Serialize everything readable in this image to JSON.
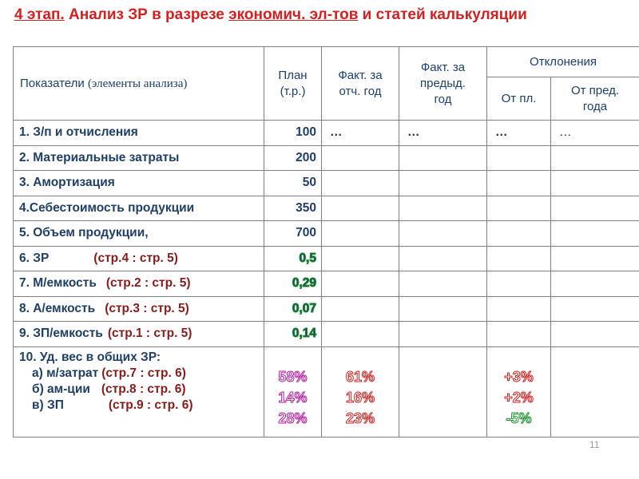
{
  "title": {
    "part1": "4 этап.",
    "part2": " Анализ ЗР в разрезе ",
    "part3": "экономич. эл-тов",
    "part4": " и статей калькуляции"
  },
  "header": {
    "indicators": "Показатели",
    "indicators_sub": "(элементы анализа)",
    "plan_line1": "План",
    "plan_line2": "(т.р.)",
    "fact_line1": "Факт. за",
    "fact_line2": "отч. год",
    "prev_line1": "Факт. за",
    "prev_line2": "предыд.",
    "prev_line3": "год",
    "deviations": "Отклонения",
    "from_plan": "От пл.",
    "from_prev_line1": "От пред.",
    "from_prev_line2": "года"
  },
  "rows": [
    {
      "label": "1. З/п и отчисления",
      "ref": "",
      "plan": "100",
      "fact": "…",
      "prev": "…",
      "dev_plan": "…",
      "dev_prev": "…"
    },
    {
      "label": "2. Материальные затраты",
      "ref": "",
      "plan": "200"
    },
    {
      "label": "3. Амортизация",
      "ref": "",
      "plan": "50"
    },
    {
      "label": "4.Себестоимость продукции",
      "ref": "",
      "plan": "350"
    },
    {
      "label": "5. Объем продукции,",
      "ref": "",
      "plan": "700"
    },
    {
      "label": "6. ЗР",
      "ref": "(стр.4 : стр. 5)",
      "plan": "0,5"
    },
    {
      "label": "7. М/емкость",
      "ref": "(стр.2 : стр. 5)",
      "plan": "0,29"
    },
    {
      "label": "8. А/емкость",
      "ref": "(стр.3 : стр. 5)",
      "plan": "0,07"
    },
    {
      "label": "9. ЗП/емкость",
      "ref": "(стр.1 : стр. 5)",
      "plan": "0,14"
    }
  ],
  "last_row": {
    "heading": "10. Уд. вес в общих ЗР:",
    "items": [
      {
        "label": "а) м/затрат",
        "ref": "(стр.7 : стр. 6)",
        "plan": "58%",
        "fact": "61%",
        "dev_plan": "+3%"
      },
      {
        "label": "б) ам-ции",
        "ref": "(стр.8 : стр. 6)",
        "plan": "14%",
        "fact": "16%",
        "dev_plan": "+2%"
      },
      {
        "label": "в) ЗП",
        "ref": "(стр.9 : стр. 6)",
        "plan": "28%",
        "fact": "23%",
        "dev_plan": "-5%"
      }
    ]
  },
  "page_number": "11",
  "colors": {
    "title": "#d42020",
    "text": "#1f3f68",
    "plan_red": "#b30000",
    "plan_green": "#1a8f2a",
    "magenta": "#b0199b"
  }
}
